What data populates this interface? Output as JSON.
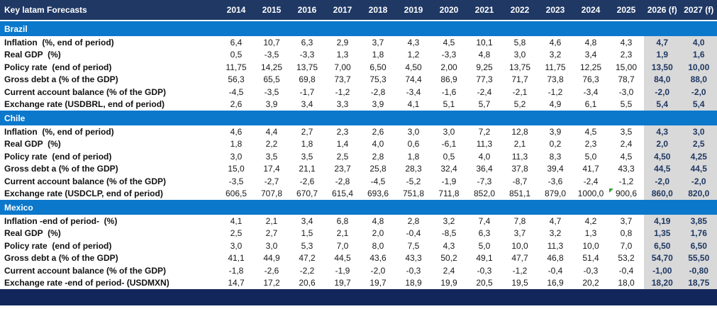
{
  "table": {
    "title": "Key latam Forecasts",
    "columns": [
      "2014",
      "2015",
      "2016",
      "2017",
      "2018",
      "2019",
      "2020",
      "2021",
      "2022",
      "2023",
      "2024",
      "2025",
      "2026 (f)",
      "2027 (f)"
    ],
    "forecast_column_count": 2,
    "sections": [
      {
        "name": "Brazil",
        "rows": [
          {
            "label": "Inflation  (%, end of period)",
            "values": [
              "6,4",
              "10,7",
              "6,3",
              "2,9",
              "3,7",
              "4,3",
              "4,5",
              "10,1",
              "5,8",
              "4,6",
              "4,8",
              "4,3",
              "4,7",
              "4,0"
            ]
          },
          {
            "label": "Real GDP  (%)",
            "values": [
              "0,5",
              "-3,5",
              "-3,3",
              "1,3",
              "1,8",
              "1,2",
              "-3,3",
              "4,8",
              "3,0",
              "3,2",
              "3,4",
              "2,3",
              "1,9",
              "1,6"
            ]
          },
          {
            "label": "Policy rate  (end of period)",
            "values": [
              "11,75",
              "14,25",
              "13,75",
              "7,00",
              "6,50",
              "4,50",
              "2,00",
              "9,25",
              "13,75",
              "11,75",
              "12,25",
              "15,00",
              "13,50",
              "10,00"
            ]
          },
          {
            "label": "Gross debt a (% of the GDP)",
            "values": [
              "56,3",
              "65,5",
              "69,8",
              "73,7",
              "75,3",
              "74,4",
              "86,9",
              "77,3",
              "71,7",
              "73,8",
              "76,3",
              "78,7",
              "84,0",
              "88,0"
            ]
          },
          {
            "label": "Current account balance (% of the GDP)",
            "values": [
              "-4,5",
              "-3,5",
              "-1,7",
              "-1,2",
              "-2,8",
              "-3,4",
              "-1,6",
              "-2,4",
              "-2,1",
              "-1,2",
              "-3,4",
              "-3,0",
              "-2,0",
              "-2,0"
            ]
          },
          {
            "label": "Exchange rate (USDBRL, end of period)",
            "values": [
              "2,6",
              "3,9",
              "3,4",
              "3,3",
              "3,9",
              "4,1",
              "5,1",
              "5,7",
              "5,2",
              "4,9",
              "6,1",
              "5,5",
              "5,4",
              "5,4"
            ]
          }
        ]
      },
      {
        "name": "Chile",
        "rows": [
          {
            "label": "Inflation  (%, end of period)",
            "values": [
              "4,6",
              "4,4",
              "2,7",
              "2,3",
              "2,6",
              "3,0",
              "3,0",
              "7,2",
              "12,8",
              "3,9",
              "4,5",
              "3,5",
              "4,3",
              "3,0"
            ]
          },
          {
            "label": "Real GDP  (%)",
            "values": [
              "1,8",
              "2,2",
              "1,8",
              "1,4",
              "4,0",
              "0,6",
              "-6,1",
              "11,3",
              "2,1",
              "0,2",
              "2,3",
              "2,4",
              "2,0",
              "2,5"
            ]
          },
          {
            "label": "Policy rate  (end of period)",
            "values": [
              "3,0",
              "3,5",
              "3,5",
              "2,5",
              "2,8",
              "1,8",
              "0,5",
              "4,0",
              "11,3",
              "8,3",
              "5,0",
              "4,5",
              "4,50",
              "4,25"
            ]
          },
          {
            "label": "Gross debt a (% of the GDP)",
            "values": [
              "15,0",
              "17,4",
              "21,1",
              "23,7",
              "25,8",
              "28,3",
              "32,4",
              "36,4",
              "37,8",
              "39,4",
              "41,7",
              "43,3",
              "44,5",
              "44,5"
            ]
          },
          {
            "label": "Current account balance (% of the GDP)",
            "values": [
              "-3,5",
              "-2,7",
              "-2,6",
              "-2,8",
              "-4,5",
              "-5,2",
              "-1,9",
              "-7,3",
              "-8,7",
              "-3,6",
              "-2,4",
              "-1,2",
              "-2,0",
              "-2,0"
            ]
          },
          {
            "label": "Exchange rate (USDCLP, end of period)",
            "values": [
              "606,5",
              "707,8",
              "670,7",
              "615,4",
              "693,6",
              "751,8",
              "711,8",
              "852,0",
              "851,1",
              "879,0",
              "1000,0",
              "900,6",
              "860,0",
              "820,0"
            ]
          }
        ]
      },
      {
        "name": "Mexico",
        "rows": [
          {
            "label": "Inflation -end of period-  (%)",
            "values": [
              "4,1",
              "2,1",
              "3,4",
              "6,8",
              "4,8",
              "2,8",
              "3,2",
              "7,4",
              "7,8",
              "4,7",
              "4,2",
              "3,7",
              "4,19",
              "3,85"
            ]
          },
          {
            "label": "Real GDP  (%)",
            "values": [
              "2,5",
              "2,7",
              "1,5",
              "2,1",
              "2,0",
              "-0,4",
              "-8,5",
              "6,3",
              "3,7",
              "3,2",
              "1,3",
              "0,8",
              "1,35",
              "1,76"
            ]
          },
          {
            "label": "Policy rate  (end of period)",
            "values": [
              "3,0",
              "3,0",
              "5,3",
              "7,0",
              "8,0",
              "7,5",
              "4,3",
              "5,0",
              "10,0",
              "11,3",
              "10,0",
              "7,0",
              "6,50",
              "6,50"
            ]
          },
          {
            "label": "Gross debt a (% of the GDP)",
            "values": [
              "41,1",
              "44,9",
              "47,2",
              "44,5",
              "43,6",
              "43,3",
              "50,2",
              "49,1",
              "47,7",
              "46,8",
              "51,4",
              "53,2",
              "54,70",
              "55,50"
            ]
          },
          {
            "label": "Current account balance (% of the GDP)",
            "values": [
              "-1,8",
              "-2,6",
              "-2,2",
              "-1,9",
              "-2,0",
              "-0,3",
              "2,4",
              "-0,3",
              "-1,2",
              "-0,4",
              "-0,3",
              "-0,4",
              "-1,00",
              "-0,80"
            ]
          },
          {
            "label": "Exchange rate -end of period- (USDMXN)",
            "values": [
              "14,7",
              "17,2",
              "20,6",
              "19,7",
              "19,7",
              "18,9",
              "19,9",
              "20,5",
              "19,5",
              "16,9",
              "20,2",
              "18,0",
              "18,20",
              "18,75"
            ]
          }
        ]
      }
    ],
    "note_marker": {
      "section_index": 1,
      "row_index": 5,
      "col_index": 11,
      "icon": "green-corner-flag-icon"
    }
  },
  "colors": {
    "header_bg": "#1F3864",
    "section_bg": "#0B78CC",
    "forecast_bg": "#D9D9D9",
    "forecast_text": "#1F3864",
    "footer_bg": "#13265C",
    "flag_green": "#2E9E2E"
  }
}
